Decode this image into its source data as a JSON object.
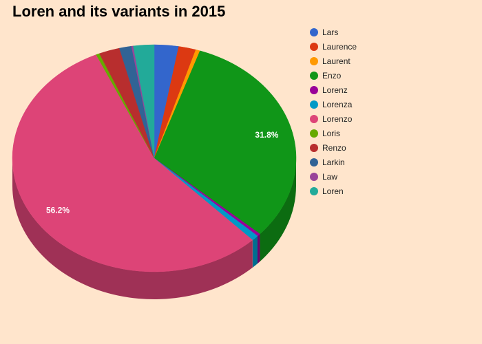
{
  "chart_data": {
    "type": "pie",
    "title": "Loren and its variants in 2015",
    "legend_position": "right",
    "slices": [
      {
        "name": "Lars",
        "value": 2.8,
        "color": "#3366cc"
      },
      {
        "name": "Laurence",
        "value": 2.0,
        "color": "#dc3912"
      },
      {
        "name": "Laurent",
        "value": 0.5,
        "color": "#ff9900"
      },
      {
        "name": "Enzo",
        "value": 31.8,
        "color": "#109618",
        "label": "31.8%"
      },
      {
        "name": "Lorenz",
        "value": 0.4,
        "color": "#990099"
      },
      {
        "name": "Lorenza",
        "value": 0.8,
        "color": "#0099c6"
      },
      {
        "name": "Lorenzo",
        "value": 56.2,
        "color": "#dd4477",
        "label": "56.2%"
      },
      {
        "name": "Loris",
        "value": 0.4,
        "color": "#66aa00"
      },
      {
        "name": "Renzo",
        "value": 2.4,
        "color": "#b82e2e"
      },
      {
        "name": "Larkin",
        "value": 1.4,
        "color": "#316395"
      },
      {
        "name": "Law",
        "value": 0.2,
        "color": "#994499"
      },
      {
        "name": "Loren",
        "value": 2.4,
        "color": "#22aa99"
      }
    ]
  }
}
